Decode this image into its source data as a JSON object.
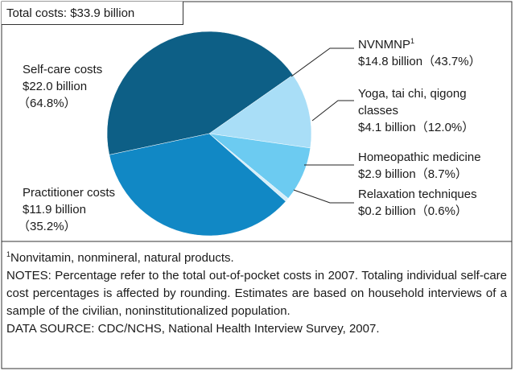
{
  "chart_data": {
    "type": "pie",
    "title": "Total costs: $33.9 billion",
    "categories": [
      "NVNMNP",
      "Yoga, tai chi, qigong classes",
      "Homeopathic medicine",
      "Relaxation techniques",
      "Practitioner costs"
    ],
    "category_marks": [
      "1",
      null,
      null,
      null,
      null
    ],
    "values": [
      43.7,
      12.0,
      8.7,
      0.6,
      35.2
    ],
    "value_labels": [
      "（43.7%）",
      "（12.0%）",
      "（8.7%）",
      "（0.6%）",
      "（35.2%）"
    ],
    "amounts": [
      14.8,
      4.1,
      2.9,
      0.2,
      11.9
    ],
    "amount_labels": [
      "$14.8 billion",
      "$4.1 billion",
      "$2.9 billion",
      "$0.2 billion",
      "$11.9 billion"
    ],
    "colors": [
      "#0d5f86",
      "#a9def7",
      "#6ccbf1",
      "#d6eef9",
      "#1188c5"
    ],
    "group": {
      "name": "Self-care costs",
      "amount": 22.0,
      "amount_label": "$22.0 billion",
      "value": 64.8,
      "value_label": "（64.8%）"
    }
  },
  "footnote": {
    "mark": "1",
    "text": "Nonvitamin, nonmineral, natural products."
  },
  "notes": "NOTES: Percentage refer to the total out-of-pocket costs in 2007. Totaling individual self-care cost percentages is affected by rounding. Estimates are based on household interviews of a sample of the civilian, noninstitutionalized population.",
  "source": "DATA SOURCE: CDC/NCHS, National Health Interview Survey, 2007."
}
